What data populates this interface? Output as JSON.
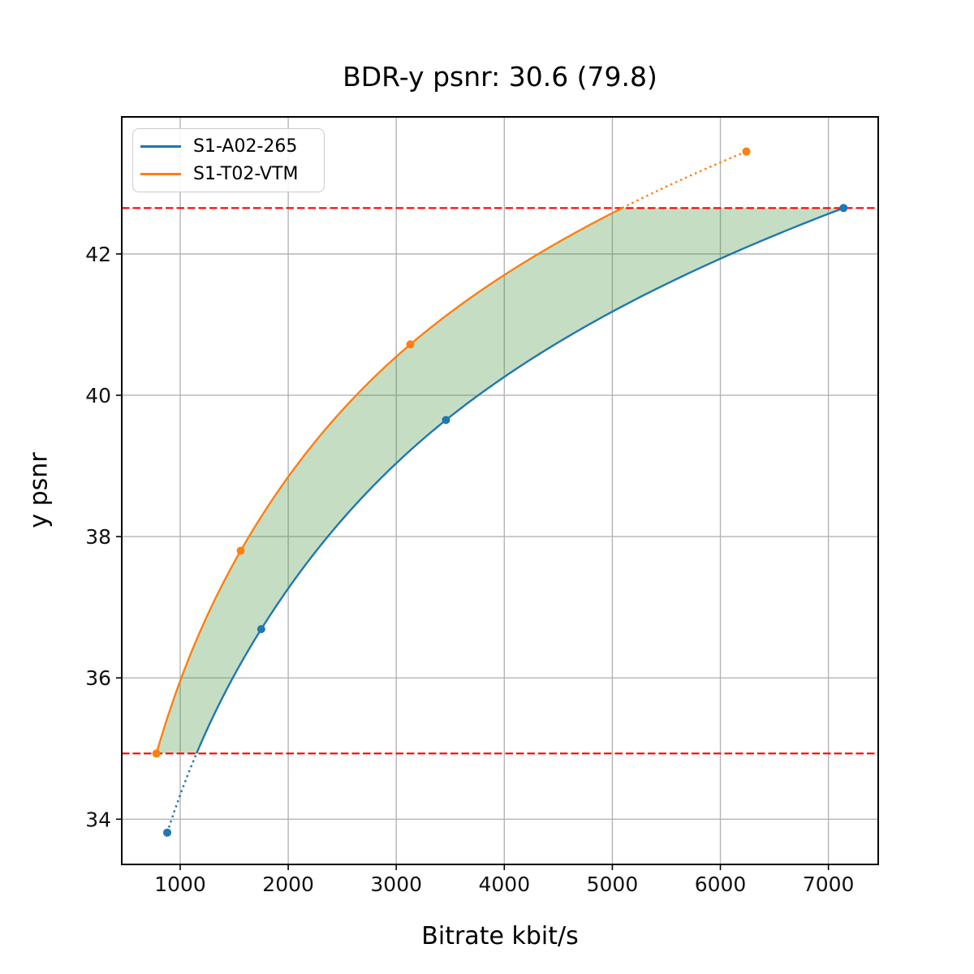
{
  "chart_data": {
    "type": "line",
    "title": "BDR-y psnr: 30.6 (79.8)",
    "xlabel": "Bitrate kbit/s",
    "ylabel": "y psnr",
    "xlim": [
      459,
      7461
    ],
    "ylim": [
      33.36,
      43.94
    ],
    "xticks": [
      1000,
      2000,
      3000,
      4000,
      5000,
      6000,
      7000
    ],
    "yticks": [
      34,
      36,
      38,
      40,
      42
    ],
    "grid": true,
    "grid_color": "#b4b4b4",
    "legend_position": "upper left",
    "series": [
      {
        "name": "S1-A02-265",
        "color": "#1f77b4",
        "marker": "circle",
        "x": [
          880,
          1750,
          3460,
          7140
        ],
        "y": [
          33.81,
          36.69,
          39.65,
          42.65
        ]
      },
      {
        "name": "S1-T02-VTM",
        "color": "#ff7f0e",
        "marker": "circle",
        "x": [
          780,
          1560,
          3130,
          6240
        ],
        "y": [
          34.93,
          37.8,
          40.72,
          43.45
        ]
      }
    ],
    "reference_hlines": {
      "values": [
        34.93,
        42.65
      ],
      "color": "#ff0000",
      "style": "dashed"
    },
    "shaded_region": {
      "color": "rgba(62,145,55,0.3)",
      "between_series": [
        "S1-T02-VTM",
        "S1-A02-265"
      ],
      "y_range": [
        34.93,
        42.65
      ]
    },
    "curve_style": {
      "interpolation": "pchip_on_log10_bitrate",
      "solid_within_overlap": true,
      "dotted_outside_overlap": true
    }
  }
}
